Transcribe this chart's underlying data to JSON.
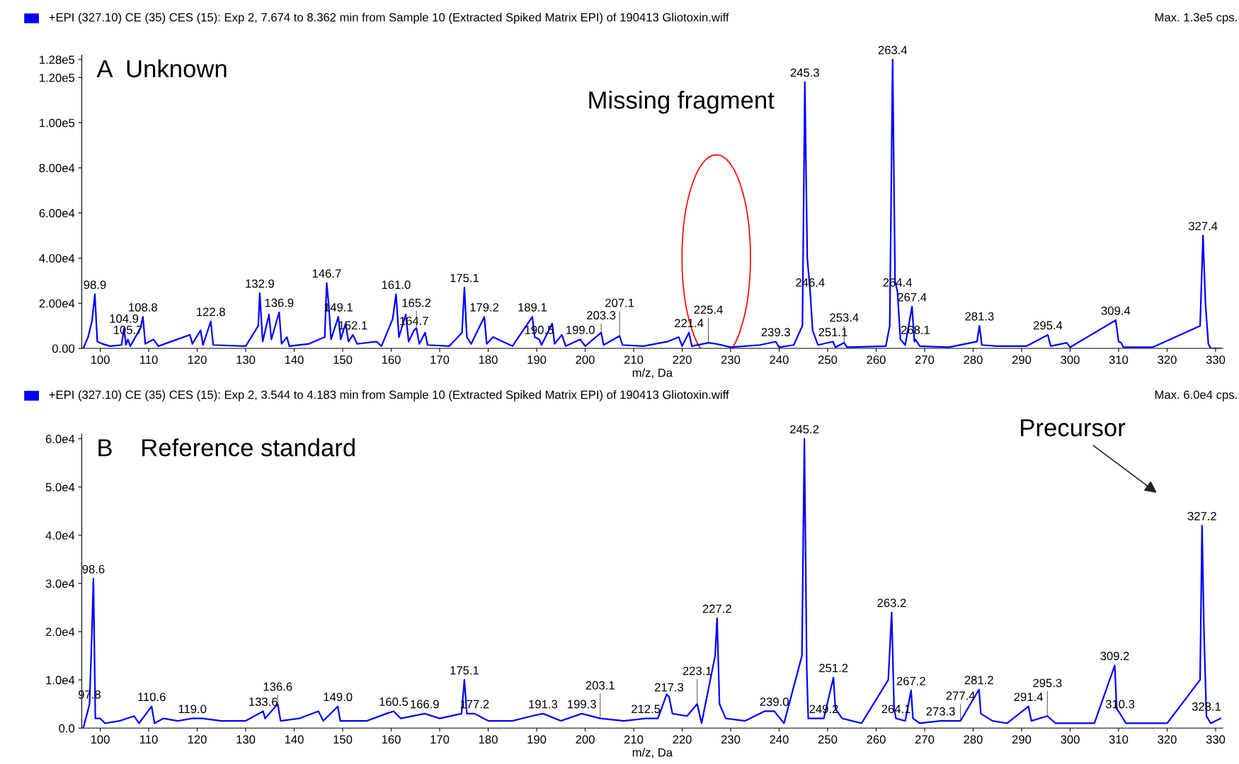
{
  "chart_data": [
    {
      "type": "line",
      "title": "A  Unknown",
      "subtitle": "+EPI (327.10) CE (35) CES (15): Exp 2, 7.674 to 8.362 min from Sample 10 (Extracted Spiked Matrix EPI) of 190413 Gliotoxin.wiff",
      "xlabel": "m/z, Da",
      "xlim": [
        96.2,
        331.5
      ],
      "ylim": [
        0,
        130000
      ],
      "xticks": [
        100,
        110,
        120,
        130,
        140,
        150,
        160,
        170,
        180,
        190,
        200,
        210,
        220,
        230,
        240,
        250,
        260,
        270,
        280,
        290,
        300,
        310,
        320,
        330
      ],
      "yticks": [
        {
          "value": 0,
          "label": "0.00"
        },
        {
          "value": 20000,
          "label": "2.00e4"
        },
        {
          "value": 40000,
          "label": "4.00e4"
        },
        {
          "value": 60000,
          "label": "6.00e4"
        },
        {
          "value": 80000,
          "label": "8.00e4"
        },
        {
          "value": 100000,
          "label": "1.00e5"
        },
        {
          "value": 120000,
          "label": "1.20e5"
        },
        {
          "value": 128000,
          "label": "1.28e5"
        }
      ],
      "grid": false,
      "marker": "none",
      "line_style": "solid",
      "series": [
        {
          "color": "#0000ff",
          "x": [
            96.5,
            97.5,
            98.3,
            98.9,
            99.4,
            100.5,
            102,
            104.4,
            104.9,
            105.3,
            105.7,
            106.2,
            108.3,
            108.8,
            109.3,
            111,
            112,
            118.5,
            119,
            120.7,
            121.2,
            122.8,
            123.3,
            130,
            132.6,
            132.9,
            133.5,
            134.8,
            135.3,
            136.9,
            137.4,
            138.5,
            139,
            143,
            146.3,
            146.7,
            147.1,
            147.6,
            149.1,
            149.6,
            150.6,
            151.2,
            152.1,
            153,
            157,
            158,
            160.3,
            161.0,
            161.6,
            163.0,
            163.6,
            164.7,
            165.2,
            165.8,
            167,
            167.5,
            172,
            174.6,
            175.1,
            175.6,
            176.5,
            179.2,
            179.7,
            181,
            185,
            189.1,
            189.6,
            190.5,
            191,
            193.2,
            193.7,
            195.2,
            196,
            199.0,
            200,
            203.3,
            203.8,
            207.1,
            207.7,
            212,
            217,
            219.3,
            220,
            221.4,
            222,
            225.4,
            227,
            230,
            236,
            239.3,
            240,
            243,
            244.8,
            245.3,
            245.8,
            246.4,
            246.9,
            248,
            251.1,
            251.6,
            253.4,
            254,
            262,
            262.8,
            263.4,
            263.9,
            264.4,
            265,
            266,
            267.4,
            267.9,
            268.1,
            269,
            275,
            280.8,
            281.3,
            281.8,
            285,
            291,
            295.4,
            296,
            299.3,
            300,
            309.4,
            310,
            310.5,
            311,
            317,
            326.8,
            327.4,
            327.9,
            328.5,
            329,
            331
          ],
          "values": [
            0,
            5000,
            12000,
            24000,
            3000,
            2000,
            1000,
            1500,
            9000,
            1500,
            4000,
            1000,
            9000,
            14000,
            2000,
            4000,
            1000,
            6000,
            2000,
            8000,
            1500,
            12000,
            1500,
            1000,
            10000,
            24500,
            3000,
            15000,
            4000,
            16000,
            2000,
            5000,
            1000,
            2000,
            5000,
            29000,
            20000,
            4000,
            14000,
            4000,
            11000,
            3000,
            6000,
            2000,
            3000,
            1000,
            13000,
            24000,
            5000,
            15000,
            3000,
            8000,
            9000,
            2000,
            7000,
            1500,
            1000,
            7000,
            27000,
            5000,
            2000,
            14000,
            2000,
            5000,
            1000,
            14000,
            5000,
            4000,
            1500,
            11000,
            2000,
            6000,
            1000,
            4000,
            1000,
            7000,
            1500,
            5500,
            1500,
            1000,
            3000,
            5000,
            1000,
            7000,
            1000,
            2500,
            2000,
            500,
            1500,
            3000,
            500,
            1500,
            10000,
            118000,
            40000,
            25000,
            8000,
            1500,
            3000,
            500,
            2500,
            500,
            1000,
            10000,
            128000,
            30000,
            25000,
            4000,
            1500,
            18500,
            3000,
            4000,
            1000,
            500,
            3000,
            10000,
            1500,
            1000,
            1000,
            6000,
            1000,
            2500,
            500,
            12500,
            3000,
            2500,
            500,
            500,
            10000,
            50000,
            20000,
            2000,
            0,
            0
          ]
        }
      ],
      "annotations": [
        "Max. 1.3e5 cps.",
        "Missing fragment",
        {
          "text": "98.9",
          "x": 98.9,
          "y": 24000
        },
        {
          "text": "104.9",
          "x": 104.9,
          "y": 9000
        },
        {
          "text": "105.7",
          "x": 105.7,
          "y": 4000
        },
        {
          "text": "108.8",
          "x": 108.8,
          "y": 14000
        },
        {
          "text": "122.8",
          "x": 122.8,
          "y": 12000
        },
        {
          "text": "132.9",
          "x": 132.9,
          "y": 24500
        },
        {
          "text": "136.9",
          "x": 136.9,
          "y": 16000
        },
        {
          "text": "146.7",
          "x": 146.7,
          "y": 29000
        },
        {
          "text": "149.1",
          "x": 149.1,
          "y": 14000
        },
        {
          "text": "152.1",
          "x": 152.1,
          "y": 6000
        },
        {
          "text": "161.0",
          "x": 161.0,
          "y": 24000
        },
        {
          "text": "164.7",
          "x": 164.7,
          "y": 8000
        },
        {
          "text": "165.2",
          "x": 165.2,
          "y": 9000
        },
        {
          "text": "175.1",
          "x": 175.1,
          "y": 27000
        },
        {
          "text": "179.2",
          "x": 179.2,
          "y": 14000
        },
        {
          "text": "189.1",
          "x": 189.1,
          "y": 14000
        },
        {
          "text": "190.5",
          "x": 190.5,
          "y": 4000
        },
        {
          "text": "199.0",
          "x": 199.0,
          "y": 4000
        },
        {
          "text": "203.3",
          "x": 203.3,
          "y": 7000
        },
        {
          "text": "207.1",
          "x": 207.1,
          "y": 5500
        },
        {
          "text": "221.4",
          "x": 221.4,
          "y": 7000
        },
        {
          "text": "225.4",
          "x": 225.4,
          "y": 2500
        },
        {
          "text": "239.3",
          "x": 239.3,
          "y": 3000
        },
        {
          "text": "245.3",
          "x": 245.3,
          "y": 118000
        },
        {
          "text": "246.4",
          "x": 246.4,
          "y": 25000
        },
        {
          "text": "251.1",
          "x": 251.1,
          "y": 3000
        },
        {
          "text": "253.4",
          "x": 253.4,
          "y": 2500
        },
        {
          "text": "263.4",
          "x": 263.4,
          "y": 128000
        },
        {
          "text": "264.4",
          "x": 264.4,
          "y": 25000
        },
        {
          "text": "267.4",
          "x": 267.4,
          "y": 18500
        },
        {
          "text": "268.1",
          "x": 268.1,
          "y": 4000
        },
        {
          "text": "281.3",
          "x": 281.3,
          "y": 10000
        },
        {
          "text": "295.4",
          "x": 295.4,
          "y": 6000
        },
        {
          "text": "309.4",
          "x": 309.4,
          "y": 12500
        },
        {
          "text": "327.4",
          "x": 327.4,
          "y": 50000
        }
      ]
    },
    {
      "type": "line",
      "title": "B    Reference standard",
      "subtitle": "+EPI (327.10) CE (35) CES (15): Exp 2, 3.544 to 4.183 min from Sample 10 (Extracted Spiked Matrix EPI) of 190413 Gliotoxin.wiff",
      "xlabel": "m/z, Da",
      "xlim": [
        96.2,
        331.5
      ],
      "ylim": [
        0,
        61000
      ],
      "xticks": [
        100,
        110,
        120,
        130,
        140,
        150,
        160,
        170,
        180,
        190,
        200,
        210,
        220,
        230,
        240,
        250,
        260,
        270,
        280,
        290,
        300,
        310,
        320,
        330
      ],
      "yticks": [
        {
          "value": 0,
          "label": "0.0"
        },
        {
          "value": 10000,
          "label": "1.0e4"
        },
        {
          "value": 20000,
          "label": "2.0e4"
        },
        {
          "value": 30000,
          "label": "3.0e4"
        },
        {
          "value": 40000,
          "label": "4.0e4"
        },
        {
          "value": 50000,
          "label": "5.0e4"
        },
        {
          "value": 60000,
          "label": "6.0e4"
        }
      ],
      "grid": false,
      "marker": "none",
      "line_style": "solid",
      "series": [
        {
          "color": "#0000ff",
          "x": [
            96.5,
            97.3,
            97.8,
            98.3,
            98.6,
            99,
            100,
            101,
            104,
            107,
            108,
            110.6,
            111.2,
            113,
            116,
            119.0,
            121,
            125,
            130,
            133.6,
            134,
            136.6,
            137.2,
            141,
            145,
            146,
            149.0,
            149.5,
            155,
            159,
            160.5,
            162,
            166.9,
            170,
            174.5,
            175.1,
            175.6,
            177.2,
            180,
            185,
            189,
            191.3,
            195,
            199.3,
            203.1,
            208,
            212.5,
            215,
            216.8,
            217.3,
            218,
            221,
            223.1,
            224,
            226.8,
            227.2,
            227.7,
            229,
            233,
            237,
            239.0,
            241,
            244.7,
            245.2,
            245.7,
            246,
            249.2,
            251.2,
            251.6,
            253,
            257,
            262.5,
            263.2,
            263.7,
            264.1,
            266,
            267.2,
            267.6,
            269,
            273.3,
            277.4,
            281.2,
            281.6,
            284,
            287,
            291.4,
            292,
            295.3,
            297,
            305,
            309.2,
            309.6,
            310.3,
            311.5,
            320,
            326.8,
            327.2,
            327.6,
            328.1,
            329,
            331
          ],
          "values": [
            0,
            3000,
            5000,
            20000,
            31000,
            2000,
            2000,
            1000,
            1500,
            2500,
            1000,
            4500,
            1000,
            2000,
            1500,
            2000,
            2000,
            1500,
            1500,
            3500,
            2000,
            5000,
            1500,
            2000,
            3500,
            1500,
            4500,
            1500,
            1500,
            3000,
            3500,
            2000,
            3000,
            2000,
            3000,
            10000,
            3000,
            3000,
            1500,
            1500,
            2500,
            3000,
            1500,
            3000,
            2000,
            1500,
            2000,
            2000,
            7000,
            6500,
            3000,
            2500,
            5000,
            1000,
            15000,
            22800,
            5000,
            2000,
            1500,
            3500,
            3500,
            1000,
            15000,
            60000,
            12000,
            2000,
            2000,
            10500,
            4000,
            2000,
            1000,
            10000,
            24000,
            4000,
            2000,
            1500,
            7800,
            2000,
            1000,
            1500,
            1500,
            8000,
            3000,
            1500,
            1000,
            4500,
            1500,
            2500,
            1000,
            1000,
            13000,
            4000,
            3000,
            1000,
            1000,
            10000,
            42000,
            20000,
            2500,
            1000,
            2000
          ]
        }
      ],
      "annotations": [
        "Max. 6.0e4 cps.",
        "Precursor",
        {
          "text": "98.6",
          "x": 98.6,
          "y": 31000
        },
        {
          "text": "97.8",
          "x": 97.8,
          "y": 5000
        },
        {
          "text": "110.6",
          "x": 110.6,
          "y": 4500
        },
        {
          "text": "119.0",
          "x": 119.0,
          "y": 2000
        },
        {
          "text": "133.6",
          "x": 133.6,
          "y": 3500
        },
        {
          "text": "136.6",
          "x": 136.6,
          "y": 5000
        },
        {
          "text": "149.0",
          "x": 149.0,
          "y": 4500
        },
        {
          "text": "160.5",
          "x": 160.5,
          "y": 3500
        },
        {
          "text": "166.9",
          "x": 166.9,
          "y": 3000
        },
        {
          "text": "175.1",
          "x": 175.1,
          "y": 10000
        },
        {
          "text": "177.2",
          "x": 177.2,
          "y": 3000
        },
        {
          "text": "191.3",
          "x": 191.3,
          "y": 3000
        },
        {
          "text": "199.3",
          "x": 199.3,
          "y": 3000
        },
        {
          "text": "203.1",
          "x": 203.1,
          "y": 2000
        },
        {
          "text": "212.5",
          "x": 212.5,
          "y": 2000
        },
        {
          "text": "217.3",
          "x": 217.3,
          "y": 6500
        },
        {
          "text": "223.1",
          "x": 223.1,
          "y": 5000
        },
        {
          "text": "227.2",
          "x": 227.2,
          "y": 22800
        },
        {
          "text": "239.0",
          "x": 239.0,
          "y": 3500
        },
        {
          "text": "245.2",
          "x": 245.2,
          "y": 60000
        },
        {
          "text": "249.2",
          "x": 249.2,
          "y": 2000
        },
        {
          "text": "251.2",
          "x": 251.2,
          "y": 10500
        },
        {
          "text": "263.2",
          "x": 263.2,
          "y": 24000
        },
        {
          "text": "264.1",
          "x": 264.1,
          "y": 2000
        },
        {
          "text": "267.2",
          "x": 267.2,
          "y": 7800
        },
        {
          "text": "273.3",
          "x": 273.3,
          "y": 1500
        },
        {
          "text": "277.4",
          "x": 277.4,
          "y": 1500
        },
        {
          "text": "281.2",
          "x": 281.2,
          "y": 8000
        },
        {
          "text": "291.4",
          "x": 291.4,
          "y": 4500
        },
        {
          "text": "295.3",
          "x": 295.3,
          "y": 2500
        },
        {
          "text": "309.2",
          "x": 309.2,
          "y": 13000
        },
        {
          "text": "310.3",
          "x": 310.3,
          "y": 3000
        },
        {
          "text": "327.2",
          "x": 327.2,
          "y": 42000
        },
        {
          "text": "328.1",
          "x": 328.1,
          "y": 2500
        }
      ]
    }
  ]
}
